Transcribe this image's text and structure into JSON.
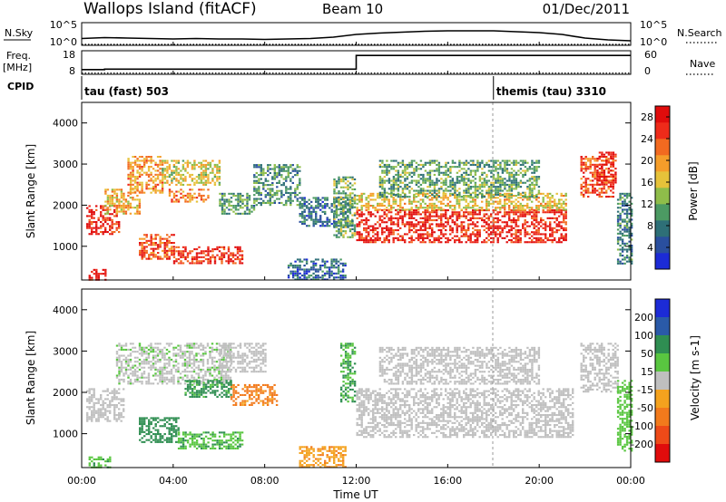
{
  "header": {
    "site": "Wallops Island (fitACF)",
    "beam": "Beam 10",
    "date": "01/Dec/2011"
  },
  "strips": {
    "nsky": {
      "label": "N.Sky",
      "tick_top": "10^5",
      "tick_bottom": "10^0"
    },
    "nsearch": {
      "label": "N.Search",
      "tick_top": "10^5",
      "tick_bottom": "10^0"
    },
    "freq": {
      "label_line1": "Freq.",
      "label_line2": "[MHz]",
      "tick_top": "18",
      "tick_bottom": "8"
    },
    "nave": {
      "label": "Nave",
      "tick_top": "60",
      "tick_bottom": "0"
    },
    "cpid": {
      "label": "CPID",
      "programs": [
        {
          "name": "tau (fast) 503",
          "start_hour": 0
        },
        {
          "name": "themis (tau) 3310",
          "start_hour": 18
        }
      ]
    }
  },
  "chart_data": [
    {
      "type": "heatmap",
      "name": "power",
      "xlabel": "Time UT",
      "ylabel": "Slant Range [km]",
      "xlim": [
        0,
        24
      ],
      "ylim": [
        180,
        4500
      ],
      "x_ticks": [
        "00:00",
        "04:00",
        "08:00",
        "12:00",
        "16:00",
        "20:00",
        "00:00"
      ],
      "y_ticks": [
        "1000",
        "2000",
        "3000",
        "4000"
      ],
      "colorbar": {
        "label": "Power [dB]",
        "ticks": [
          "4",
          "8",
          "12",
          "16",
          "20",
          "24",
          "28"
        ],
        "range": [
          0,
          30
        ],
        "colors": [
          "#1c2bd6",
          "#2a4f9e",
          "#2e6f77",
          "#4c9a63",
          "#8fbd4a",
          "#e6c23a",
          "#f59d2a",
          "#f26a20",
          "#ee2b1a",
          "#e00c0c"
        ]
      },
      "regions": [
        {
          "t": [
            0.2,
            1.6
          ],
          "r": [
            1300,
            2000
          ],
          "p": 27
        },
        {
          "t": [
            1.0,
            2.5
          ],
          "r": [
            1800,
            2400
          ],
          "p": 18
        },
        {
          "t": [
            2.0,
            3.5
          ],
          "r": [
            2300,
            3200
          ],
          "p": 20
        },
        {
          "t": [
            3.5,
            6.0
          ],
          "r": [
            2500,
            3100
          ],
          "p": 16
        },
        {
          "t": [
            3.8,
            5.5
          ],
          "r": [
            2100,
            2400
          ],
          "p": 22
        },
        {
          "t": [
            6.0,
            7.5
          ],
          "r": [
            1800,
            2300
          ],
          "p": 10
        },
        {
          "t": [
            7.5,
            9.5
          ],
          "r": [
            2000,
            3000
          ],
          "p": 9
        },
        {
          "t": [
            2.5,
            4.0
          ],
          "r": [
            700,
            1300
          ],
          "p": 24
        },
        {
          "t": [
            4.0,
            7.0
          ],
          "r": [
            600,
            1000
          ],
          "p": 26
        },
        {
          "t": [
            0.3,
            1.0
          ],
          "r": [
            180,
            450
          ],
          "p": 27
        },
        {
          "t": [
            9.5,
            11.8
          ],
          "r": [
            1500,
            2200
          ],
          "p": 7
        },
        {
          "t": [
            11.0,
            11.9
          ],
          "r": [
            1200,
            2700
          ],
          "p": 12
        },
        {
          "t": [
            12.0,
            21.2
          ],
          "r": [
            1100,
            1900
          ],
          "p": 27
        },
        {
          "t": [
            12.0,
            21.2
          ],
          "r": [
            1900,
            2300
          ],
          "p": 17
        },
        {
          "t": [
            13.0,
            20.0
          ],
          "r": [
            2200,
            3100
          ],
          "p": 11
        },
        {
          "t": [
            9.0,
            11.5
          ],
          "r": [
            180,
            700
          ],
          "p": 6
        },
        {
          "t": [
            21.8,
            23.2
          ],
          "r": [
            2200,
            3200
          ],
          "p": 24
        },
        {
          "t": [
            22.5,
            23.3
          ],
          "r": [
            2500,
            3300
          ],
          "p": 28
        },
        {
          "t": [
            23.4,
            24.0
          ],
          "r": [
            600,
            2300
          ],
          "p": 8
        }
      ]
    },
    {
      "type": "heatmap",
      "name": "velocity",
      "xlabel": "Time UT",
      "ylabel": "Slant Range [km]",
      "xlim": [
        0,
        24
      ],
      "ylim": [
        180,
        4500
      ],
      "x_ticks": [
        "00:00",
        "04:00",
        "08:00",
        "12:00",
        "16:00",
        "20:00",
        "00:00"
      ],
      "y_ticks": [
        "1000",
        "2000",
        "3000",
        "4000"
      ],
      "colorbar": {
        "label": "Velocity [m s-1]",
        "ticks": [
          "200",
          "100",
          "50",
          "15",
          "-15",
          "-50",
          "-100",
          "-200"
        ],
        "colors": [
          "#1c2bd6",
          "#2a5aa8",
          "#2f8e52",
          "#59c640",
          "#bfbfbf",
          "#f4a21e",
          "#f27a1c",
          "#ee4a18",
          "#e00c0c"
        ]
      },
      "regions": [
        {
          "t": [
            0.2,
            1.8
          ],
          "r": [
            1300,
            2100
          ],
          "v": 0
        },
        {
          "t": [
            1.5,
            6.5
          ],
          "r": [
            2200,
            3200
          ],
          "v": 5
        },
        {
          "t": [
            6.0,
            8.0
          ],
          "r": [
            2500,
            3200
          ],
          "v": 0
        },
        {
          "t": [
            6.5,
            8.5
          ],
          "r": [
            1700,
            2200
          ],
          "v": -60
        },
        {
          "t": [
            4.5,
            6.5
          ],
          "r": [
            1900,
            2300
          ],
          "v": 60
        },
        {
          "t": [
            2.5,
            4.2
          ],
          "r": [
            800,
            1400
          ],
          "v": 70
        },
        {
          "t": [
            4.2,
            7.0
          ],
          "r": [
            650,
            1050
          ],
          "v": 45
        },
        {
          "t": [
            0.3,
            1.2
          ],
          "r": [
            180,
            450
          ],
          "v": 40
        },
        {
          "t": [
            9.5,
            11.5
          ],
          "r": [
            180,
            700
          ],
          "v": -40
        },
        {
          "t": [
            11.3,
            11.9
          ],
          "r": [
            1800,
            3200
          ],
          "v": 50
        },
        {
          "t": [
            12.0,
            21.5
          ],
          "r": [
            900,
            2100
          ],
          "v": 0
        },
        {
          "t": [
            13.0,
            20.0
          ],
          "r": [
            2200,
            3100
          ],
          "v": 0
        },
        {
          "t": [
            21.8,
            23.4
          ],
          "r": [
            2000,
            3200
          ],
          "v": 0
        },
        {
          "t": [
            23.4,
            24.0
          ],
          "r": [
            600,
            2300
          ],
          "v": 30
        }
      ]
    },
    {
      "type": "line",
      "name": "strip-series",
      "x_hours": [
        0,
        1,
        2,
        3,
        4,
        5,
        6,
        7,
        8,
        9,
        10,
        11,
        12,
        13,
        14,
        15,
        16,
        17,
        18,
        19,
        20,
        21,
        22,
        23,
        24
      ],
      "nsky_log": [
        1.5,
        1.7,
        1.6,
        1.5,
        1.4,
        1.5,
        1.4,
        1.4,
        1.3,
        1.4,
        1.5,
        1.8,
        2.4,
        2.7,
        2.9,
        3.1,
        3.2,
        3.2,
        3.2,
        3.0,
        2.8,
        2.4,
        1.6,
        1.2,
        1.0
      ],
      "nsearch_log": [
        0.2,
        0.2,
        0.2,
        0.2,
        0.2,
        0.2,
        0.2,
        0.2,
        0.2,
        0.2,
        0.2,
        0.2,
        0.2,
        0.2,
        0.2,
        0.2,
        0.2,
        0.2,
        0.2,
        0.2,
        0.2,
        0.2,
        0.2,
        0.2,
        0.2
      ],
      "freq_mhz": [
        10.0,
        10.2,
        10.2,
        10.2,
        10.2,
        10.2,
        10.2,
        10.2,
        10.2,
        10.2,
        10.2,
        10.2,
        16.0,
        16.0,
        16.0,
        16.0,
        16.0,
        16.0,
        16.0,
        16.0,
        16.0,
        16.0,
        16.0,
        16.0,
        16.0
      ],
      "nave": [
        3,
        3,
        3,
        3,
        3,
        3,
        3,
        3,
        3,
        3,
        3,
        3,
        3,
        3,
        3,
        3,
        3,
        3,
        3,
        3,
        3,
        3,
        3,
        3,
        3
      ]
    }
  ]
}
